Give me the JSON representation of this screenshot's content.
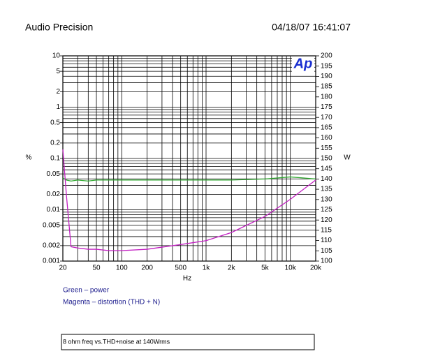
{
  "chart_data": {
    "type": "line",
    "title": "Audio Precision",
    "timestamp": "04/18/07 16:41:07",
    "logo": "Ap",
    "ylabel": "%",
    "y2label": "W",
    "xlabel": "Hz",
    "caption": "8 ohm freq vs.THD+noise at 140Wrms",
    "xscale": "log",
    "yscale": "log",
    "grid": true,
    "xlim": [
      20,
      20000
    ],
    "xticks": [
      20,
      50,
      100,
      200,
      500,
      {
        "value": 1000,
        "label": "1k"
      },
      {
        "value": 2000,
        "label": "2k"
      },
      {
        "value": 5000,
        "label": "5k"
      },
      {
        "value": 10000,
        "label": "10k"
      },
      {
        "value": 20000,
        "label": "20k"
      }
    ],
    "x_minor_ticks": [
      30,
      40,
      60,
      70,
      80,
      90,
      300,
      400,
      600,
      700,
      800,
      900,
      3000,
      4000,
      6000,
      7000,
      8000,
      9000
    ],
    "ylim": [
      0.001,
      10
    ],
    "yticks": [
      0.001,
      0.002,
      0.005,
      0.01,
      0.02,
      0.05,
      0.1,
      0.2,
      0.5,
      1,
      2,
      5,
      10
    ],
    "y_minor_ticks": [
      0.003,
      0.004,
      0.006,
      0.007,
      0.008,
      0.009,
      0.03,
      0.04,
      0.06,
      0.07,
      0.08,
      0.09,
      0.3,
      0.4,
      0.6,
      0.7,
      0.8,
      0.9,
      3,
      4,
      6,
      7,
      8,
      9
    ],
    "y2lim": [
      100,
      200
    ],
    "y2ticks": [
      100,
      105,
      110,
      115,
      120,
      125,
      130,
      135,
      140,
      145,
      150,
      155,
      160,
      165,
      170,
      175,
      180,
      185,
      190,
      195,
      200
    ],
    "x": [
      20,
      22,
      25,
      30,
      40,
      50,
      70,
      100,
      200,
      500,
      1000,
      2000,
      5000,
      10000,
      20000
    ],
    "series": [
      {
        "name": "Green – power",
        "color": "#2ea82e",
        "axis": "y2",
        "values": [
          140.5,
          139.5,
          139,
          139.5,
          139,
          139.5,
          139.5,
          139.5,
          139.5,
          139.5,
          139.5,
          139.5,
          140,
          141,
          140
        ]
      },
      {
        "name": "Magenta – distortion (THD + N)",
        "color": "#c21fc2",
        "values": [
          0.15,
          0.02,
          0.0019,
          0.0018,
          0.0017,
          0.0017,
          0.0016,
          0.0016,
          0.0017,
          0.0021,
          0.0025,
          0.0036,
          0.0074,
          0.016,
          0.038
        ]
      }
    ]
  }
}
